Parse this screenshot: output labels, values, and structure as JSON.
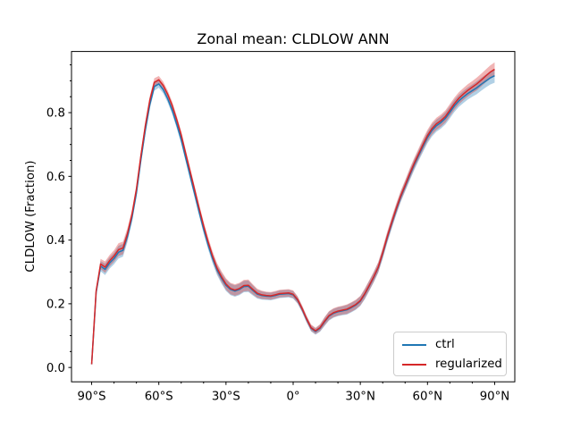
{
  "figure": {
    "title": "Zonal mean: CLDLOW ANN",
    "ylabel": "CLDLOW (Fraction)"
  },
  "legend": {
    "position": "lower right",
    "items": [
      {
        "label": "ctrl",
        "color": "#1f77b4"
      },
      {
        "label": "regularized",
        "color": "#d62728"
      }
    ]
  },
  "chart_data": {
    "type": "line",
    "title": "Zonal mean: CLDLOW ANN",
    "xlabel": "",
    "ylabel": "CLDLOW (Fraction)",
    "grid": false,
    "legend_position": "lower right",
    "xlim": [
      -99,
      99
    ],
    "ylim": [
      -0.045,
      0.992
    ],
    "x_tick_values": [
      -90,
      -60,
      -30,
      0,
      30,
      60,
      90
    ],
    "x_tick_labels": [
      "90°S",
      "60°S",
      "30°S",
      "0°",
      "30°N",
      "60°N",
      "90°N"
    ],
    "x_minor_tick_values": [
      -80,
      -70,
      -50,
      -40,
      -20,
      -10,
      10,
      20,
      40,
      50,
      70,
      80
    ],
    "y_tick_values": [
      0.0,
      0.2,
      0.4,
      0.6,
      0.8
    ],
    "y_tick_labels": [
      "0.0",
      "0.2",
      "0.4",
      "0.6",
      "0.8"
    ],
    "y_minor_step": 0.05,
    "band_alpha": 0.35,
    "x": [
      -90,
      -88,
      -86,
      -84,
      -82,
      -80,
      -78,
      -76,
      -74,
      -72,
      -70,
      -68,
      -66,
      -64,
      -62,
      -60,
      -58,
      -56,
      -54,
      -52,
      -50,
      -48,
      -46,
      -44,
      -42,
      -40,
      -38,
      -36,
      -34,
      -32,
      -30,
      -28,
      -26,
      -24,
      -22,
      -20,
      -18,
      -16,
      -14,
      -12,
      -10,
      -8,
      -6,
      -4,
      -2,
      0,
      2,
      4,
      6,
      8,
      10,
      12,
      14,
      16,
      18,
      20,
      22,
      24,
      26,
      28,
      30,
      32,
      34,
      36,
      38,
      40,
      42,
      44,
      46,
      48,
      50,
      52,
      54,
      56,
      58,
      60,
      62,
      64,
      66,
      68,
      70,
      72,
      74,
      76,
      78,
      80,
      82,
      84,
      86,
      88,
      90
    ],
    "series": [
      {
        "name": "ctrl",
        "color": "#1f77b4",
        "values": [
          0.01,
          0.235,
          0.318,
          0.308,
          0.328,
          0.342,
          0.362,
          0.368,
          0.412,
          0.47,
          0.548,
          0.652,
          0.746,
          0.826,
          0.882,
          0.89,
          0.872,
          0.843,
          0.807,
          0.763,
          0.715,
          0.658,
          0.601,
          0.545,
          0.488,
          0.434,
          0.385,
          0.342,
          0.306,
          0.28,
          0.258,
          0.245,
          0.24,
          0.245,
          0.254,
          0.255,
          0.242,
          0.23,
          0.226,
          0.224,
          0.223,
          0.226,
          0.23,
          0.231,
          0.232,
          0.228,
          0.211,
          0.183,
          0.151,
          0.123,
          0.113,
          0.123,
          0.143,
          0.161,
          0.17,
          0.175,
          0.178,
          0.181,
          0.188,
          0.196,
          0.208,
          0.23,
          0.256,
          0.283,
          0.313,
          0.357,
          0.406,
          0.451,
          0.494,
          0.534,
          0.568,
          0.602,
          0.635,
          0.665,
          0.694,
          0.722,
          0.744,
          0.759,
          0.769,
          0.782,
          0.801,
          0.821,
          0.837,
          0.849,
          0.86,
          0.869,
          0.878,
          0.889,
          0.899,
          0.909,
          0.916
        ],
        "band": [
          0.004,
          0.01,
          0.016,
          0.018,
          0.018,
          0.018,
          0.02,
          0.02,
          0.018,
          0.015,
          0.014,
          0.013,
          0.013,
          0.013,
          0.013,
          0.012,
          0.012,
          0.012,
          0.012,
          0.012,
          0.012,
          0.012,
          0.012,
          0.012,
          0.012,
          0.013,
          0.014,
          0.015,
          0.016,
          0.017,
          0.018,
          0.018,
          0.018,
          0.018,
          0.018,
          0.018,
          0.016,
          0.014,
          0.013,
          0.012,
          0.012,
          0.012,
          0.012,
          0.012,
          0.012,
          0.012,
          0.011,
          0.01,
          0.01,
          0.01,
          0.01,
          0.011,
          0.013,
          0.014,
          0.014,
          0.014,
          0.014,
          0.015,
          0.015,
          0.015,
          0.015,
          0.016,
          0.016,
          0.016,
          0.016,
          0.016,
          0.016,
          0.016,
          0.016,
          0.016,
          0.016,
          0.017,
          0.017,
          0.017,
          0.018,
          0.018,
          0.019,
          0.019,
          0.019,
          0.019,
          0.019,
          0.019,
          0.019,
          0.019,
          0.019,
          0.019,
          0.02,
          0.02,
          0.02,
          0.021,
          0.022
        ]
      },
      {
        "name": "regularized",
        "color": "#d62728",
        "values": [
          0.01,
          0.24,
          0.325,
          0.315,
          0.335,
          0.35,
          0.37,
          0.375,
          0.42,
          0.48,
          0.56,
          0.665,
          0.76,
          0.84,
          0.895,
          0.903,
          0.885,
          0.857,
          0.822,
          0.778,
          0.73,
          0.672,
          0.615,
          0.558,
          0.5,
          0.445,
          0.395,
          0.35,
          0.312,
          0.285,
          0.262,
          0.248,
          0.243,
          0.248,
          0.257,
          0.258,
          0.245,
          0.233,
          0.228,
          0.226,
          0.225,
          0.228,
          0.232,
          0.233,
          0.234,
          0.23,
          0.213,
          0.185,
          0.153,
          0.125,
          0.115,
          0.125,
          0.145,
          0.163,
          0.172,
          0.177,
          0.18,
          0.183,
          0.19,
          0.198,
          0.21,
          0.232,
          0.258,
          0.285,
          0.315,
          0.36,
          0.41,
          0.455,
          0.498,
          0.538,
          0.572,
          0.607,
          0.64,
          0.67,
          0.7,
          0.728,
          0.75,
          0.765,
          0.775,
          0.788,
          0.808,
          0.828,
          0.845,
          0.858,
          0.87,
          0.88,
          0.89,
          0.902,
          0.915,
          0.927,
          0.936
        ],
        "band": [
          0.004,
          0.01,
          0.016,
          0.018,
          0.018,
          0.018,
          0.02,
          0.02,
          0.018,
          0.015,
          0.014,
          0.013,
          0.013,
          0.013,
          0.013,
          0.012,
          0.012,
          0.012,
          0.012,
          0.012,
          0.012,
          0.012,
          0.012,
          0.012,
          0.012,
          0.013,
          0.014,
          0.015,
          0.016,
          0.017,
          0.018,
          0.018,
          0.018,
          0.018,
          0.018,
          0.018,
          0.016,
          0.014,
          0.013,
          0.012,
          0.012,
          0.012,
          0.012,
          0.012,
          0.012,
          0.012,
          0.011,
          0.01,
          0.01,
          0.01,
          0.01,
          0.011,
          0.013,
          0.014,
          0.014,
          0.014,
          0.014,
          0.015,
          0.015,
          0.015,
          0.015,
          0.016,
          0.016,
          0.016,
          0.016,
          0.016,
          0.016,
          0.016,
          0.016,
          0.016,
          0.016,
          0.017,
          0.017,
          0.017,
          0.018,
          0.018,
          0.019,
          0.019,
          0.019,
          0.019,
          0.019,
          0.019,
          0.019,
          0.019,
          0.019,
          0.019,
          0.02,
          0.02,
          0.02,
          0.021,
          0.022
        ]
      }
    ]
  }
}
